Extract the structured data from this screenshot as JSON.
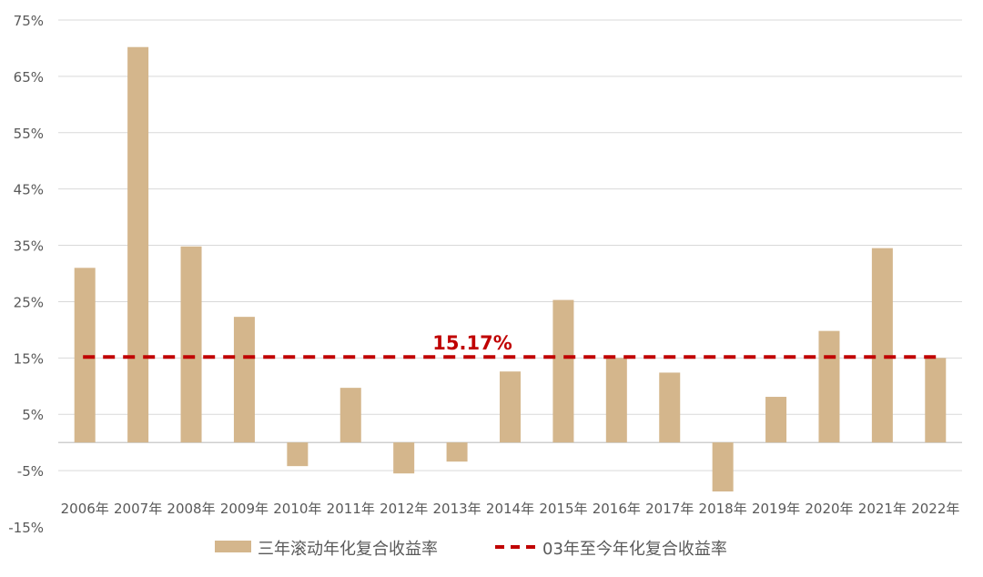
{
  "chart_data": {
    "type": "bar",
    "title": "",
    "xlabel": "",
    "ylabel": "",
    "ylim": [
      -15,
      75
    ],
    "yticks": [
      "75%",
      "65%",
      "55%",
      "45%",
      "35%",
      "25%",
      "15%",
      "5%",
      "-5%",
      "-15%"
    ],
    "ytick_values": [
      75,
      65,
      55,
      45,
      35,
      25,
      15,
      5,
      -5,
      -15
    ],
    "categories": [
      "2006年",
      "2007年",
      "2008年",
      "2009年",
      "2010年",
      "2011年",
      "2012年",
      "2013年",
      "2014年",
      "2015年",
      "2016年",
      "2017年",
      "2018年",
      "2019年",
      "2020年",
      "2021年",
      "2022年"
    ],
    "series": [
      {
        "name": "三年滚动年化复合收益率",
        "type": "bar",
        "color": "#d4b68c",
        "values": [
          31.0,
          70.2,
          34.8,
          22.3,
          -4.2,
          9.7,
          -5.5,
          -3.4,
          12.6,
          25.3,
          15.0,
          12.4,
          -8.7,
          8.1,
          19.8,
          34.5,
          15.0
        ]
      },
      {
        "name": "03年至今年化复合收益率",
        "type": "line",
        "style": "dashed",
        "color": "#c00000",
        "value": 15.17
      }
    ],
    "annotation": "15.17%",
    "grid": true,
    "legend_position": "bottom"
  }
}
